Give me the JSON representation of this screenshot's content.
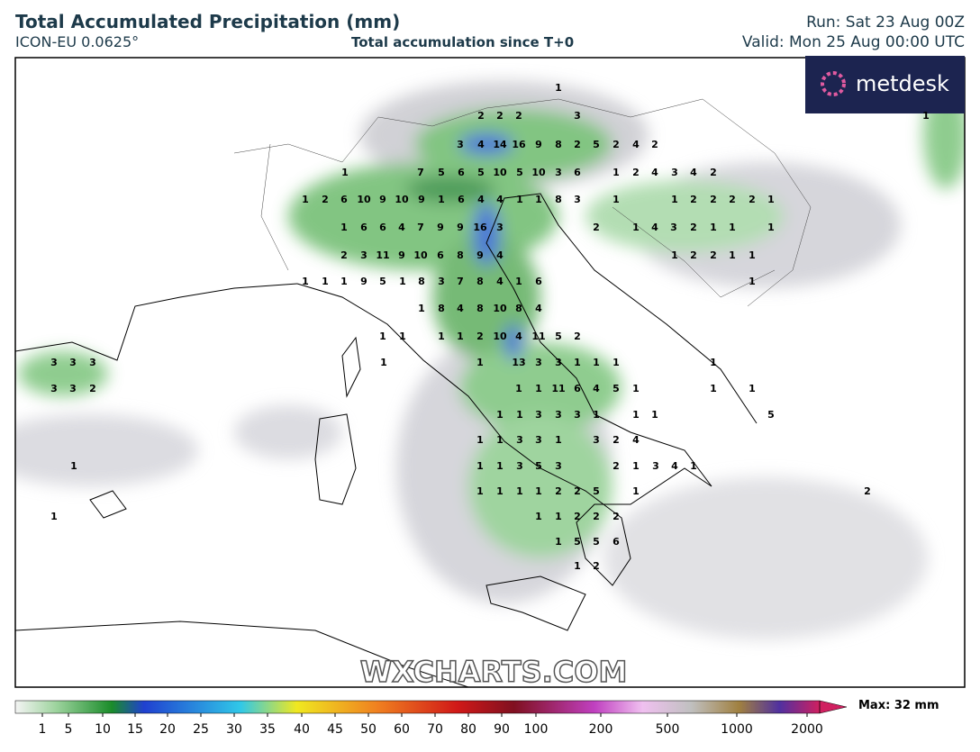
{
  "header": {
    "title": "Total Accumulated Precipitation (mm)",
    "model": "ICON-EU 0.0625°",
    "subtitle": "Total accumulation since T+0",
    "run": "Run: Sat 23 Aug 00Z",
    "valid": "Valid: Mon 25 Aug 00:00 UTC"
  },
  "logo": "metdesk",
  "watermark": "WXCHARTS.COM",
  "map_labels": [
    [
      1
    ],
    [
      2,
      2,
      2,
      3,
      1
    ],
    [
      3,
      4,
      14,
      16,
      9,
      8,
      2,
      5,
      2,
      4,
      2
    ],
    [
      1,
      7,
      5,
      6,
      5,
      10,
      5,
      10,
      3,
      6,
      1,
      2,
      4,
      3,
      4,
      2
    ],
    [
      1,
      2,
      6,
      10,
      9,
      10,
      9,
      1,
      6,
      4,
      4,
      1,
      1,
      8,
      3,
      1,
      1,
      2,
      2,
      2,
      2,
      1
    ],
    [
      1,
      6,
      6,
      4,
      7,
      9,
      9,
      16,
      3,
      2,
      1,
      4,
      3,
      2,
      1,
      1,
      1
    ],
    [
      2,
      3,
      11,
      9,
      10,
      6,
      8,
      9,
      4,
      1,
      2,
      2,
      1,
      1
    ],
    [
      1,
      1,
      1,
      9,
      5,
      1,
      8,
      3,
      7,
      8,
      4,
      1,
      6,
      1
    ],
    [
      1,
      8,
      4,
      8,
      10,
      8,
      4
    ],
    [
      1,
      1,
      1,
      1,
      2,
      10,
      4,
      11,
      5,
      2
    ],
    [
      3,
      3,
      3,
      1,
      1,
      13,
      3,
      3,
      1,
      1,
      1,
      1
    ],
    [
      3,
      3,
      2,
      1,
      1,
      11,
      6,
      4,
      5,
      1,
      1,
      1
    ],
    [
      1,
      1,
      3,
      3,
      3,
      1,
      1,
      1,
      5
    ],
    [
      1,
      1,
      3,
      3,
      1,
      3,
      2,
      4
    ],
    [
      1,
      1,
      1,
      3,
      5,
      3,
      2,
      1,
      3,
      4,
      1
    ],
    [
      1,
      1,
      1,
      1,
      2,
      2,
      5,
      1,
      2
    ],
    [
      1,
      1,
      1,
      2,
      2,
      2
    ],
    [
      1,
      5,
      5,
      6
    ],
    [
      1,
      2
    ]
  ],
  "colorbar": {
    "labels": [
      1,
      5,
      10,
      15,
      20,
      25,
      30,
      35,
      40,
      45,
      50,
      60,
      70,
      80,
      90,
      100,
      200,
      500,
      1000,
      2000
    ],
    "max": "Max: 32 mm"
  }
}
